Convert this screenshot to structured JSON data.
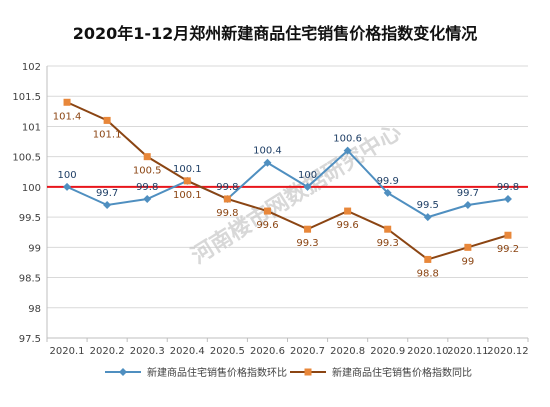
{
  "chart_data": {
    "type": "line",
    "title": "2020年1-12月郑州新建商品住宅销售价格指数变化情况",
    "watermark": "河南楼市网数据研究中心",
    "categories": [
      "2020.1",
      "2020.2",
      "2020.3",
      "2020.4",
      "2020.5",
      "2020.6",
      "2020.7",
      "2020.8",
      "2020.9",
      "2020.10",
      "2020.11",
      "2020.12"
    ],
    "ylim": [
      97.5,
      102
    ],
    "yticks": [
      "97.5",
      "98",
      "98.5",
      "99",
      "99.5",
      "100",
      "100.5",
      "101",
      "101.5",
      "102"
    ],
    "reference_line": 100,
    "grid": true,
    "legend_position": "bottom",
    "series": [
      {
        "name": "新建商品住宅销售价格指数环比",
        "color": "#4F8FC0",
        "marker": "diamond",
        "values": [
          100,
          99.7,
          99.8,
          100.1,
          99.8,
          100.4,
          100,
          100.6,
          99.9,
          99.5,
          99.7,
          99.8
        ],
        "labels": [
          "100",
          "99.7",
          "99.8",
          "100.1",
          "99.8",
          "100.4",
          "100",
          "100.6",
          "99.9",
          "99.5",
          "99.7",
          "99.8"
        ]
      },
      {
        "name": "新建商品住宅销售价格指数同比",
        "color": "#8B4513",
        "marker": "square",
        "marker_color": "#E8873A",
        "values": [
          101.4,
          101.1,
          100.5,
          100.1,
          99.8,
          99.6,
          99.3,
          99.6,
          99.3,
          98.8,
          99,
          99.2
        ],
        "labels": [
          "101.4",
          "101.1",
          "100.5",
          "100.1",
          "99.8",
          "99.6",
          "99.3",
          "99.6",
          "99.3",
          "98.8",
          "99",
          "99.2"
        ]
      }
    ],
    "colors": {
      "reference": "#E8151B",
      "axis": "#BFBFBF",
      "grid": "#D9D9D9",
      "text": "#404040",
      "watermark": "#C8C8C8"
    }
  }
}
